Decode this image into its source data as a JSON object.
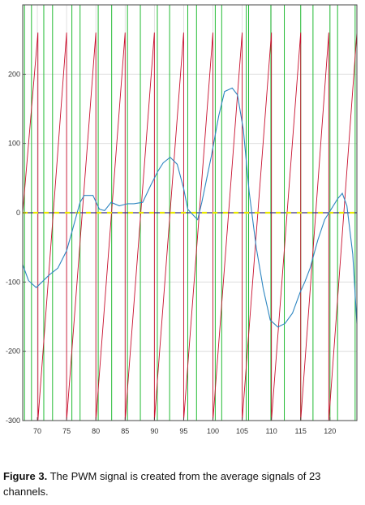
{
  "chart_data": {
    "type": "line",
    "xlim": [
      67.5,
      124.6
    ],
    "ylim": [
      -300,
      300
    ],
    "x_ticks": [
      70,
      75,
      80,
      85,
      90,
      95,
      100,
      105,
      110,
      115,
      120
    ],
    "y_ticks": [
      -300,
      -200,
      -100,
      0,
      100,
      200
    ],
    "grid": true,
    "colors": {
      "carrier": "#c8102e",
      "pwm": "#22bb33",
      "average": "#2e86c1",
      "zero": "#e8e800",
      "baseline": "#3a2d7a"
    },
    "carrier": {
      "description_free": true,
      "period": 5,
      "y_min": -300,
      "y_max": 260,
      "peaks_x": [
        70.1,
        75.0,
        80.0,
        85.0,
        90.0,
        95.0,
        100.0,
        105.0,
        110.0,
        115.0,
        119.8,
        124.6
      ]
    },
    "pwm_edges_x": [
      67.8,
      69.0,
      71.1,
      72.6,
      75.9,
      77.3,
      80.4,
      82.7,
      85.4,
      87.6,
      90.5,
      92.6,
      95.7,
      97.2,
      100.4,
      101.5,
      105.7,
      106.1,
      109.9,
      112.2,
      115.0,
      117.1,
      120.0,
      121.3,
      124.3
    ],
    "average_signal": {
      "x": [
        67.5,
        68.5,
        69.8,
        70.8,
        72.0,
        73.5,
        75.0,
        76.0,
        77.3,
        78.0,
        79.5,
        80.6,
        81.5,
        82.6,
        84.0,
        85.4,
        86.5,
        88.0,
        89.4,
        90.6,
        91.5,
        92.7,
        93.9,
        95.0,
        95.7,
        96.8,
        97.4,
        98.1,
        99.7,
        101.0,
        102.0,
        103.3,
        104.2,
        105.2,
        106.2,
        107.4,
        108.6,
        109.8,
        111.1,
        112.3,
        113.6,
        114.9,
        115.7,
        116.6,
        117.9,
        119.1,
        120.2,
        121.3,
        122.1,
        122.9,
        123.9,
        124.6
      ],
      "y": [
        -75,
        -98,
        -108,
        -100,
        -90,
        -80,
        -55,
        -25,
        15,
        25,
        25,
        5,
        3,
        15,
        10,
        13,
        13,
        15,
        40,
        60,
        72,
        80,
        70,
        35,
        5,
        -5,
        -10,
        15,
        80,
        140,
        175,
        180,
        170,
        120,
        30,
        -50,
        -110,
        -155,
        -165,
        -160,
        -145,
        -115,
        -100,
        -80,
        -40,
        -10,
        5,
        20,
        28,
        10,
        -60,
        -160
      ]
    }
  },
  "caption": {
    "label": "Figure   3.",
    "text": "The PWM signal is created from the average signals of 23 channels."
  }
}
